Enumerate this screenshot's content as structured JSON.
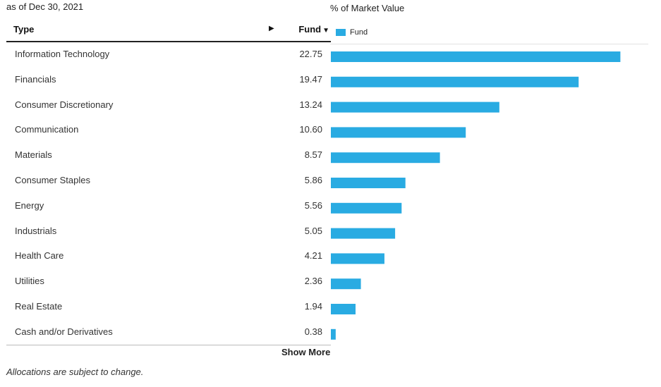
{
  "as_of": "as of Dec 30, 2021",
  "table": {
    "col_type": "Type",
    "col_expand_icon": "triangle-right-icon",
    "col_fund": "Fund",
    "col_sort_icon": "sort-down-icon",
    "rows": [
      {
        "label": "Information Technology",
        "value": "22.75"
      },
      {
        "label": "Financials",
        "value": "19.47"
      },
      {
        "label": "Consumer Discretionary",
        "value": "13.24"
      },
      {
        "label": "Communication",
        "value": "10.60"
      },
      {
        "label": "Materials",
        "value": "8.57"
      },
      {
        "label": "Consumer Staples",
        "value": "5.86"
      },
      {
        "label": "Energy",
        "value": "5.56"
      },
      {
        "label": "Industrials",
        "value": "5.05"
      },
      {
        "label": "Health Care",
        "value": "4.21"
      },
      {
        "label": "Utilities",
        "value": "2.36"
      },
      {
        "label": "Real Estate",
        "value": "1.94"
      },
      {
        "label": "Cash and/or Derivatives",
        "value": "0.38"
      }
    ]
  },
  "show_more": "Show More",
  "footnote": "Allocations are subject to change.",
  "chart_data": {
    "type": "bar",
    "orientation": "horizontal",
    "title": "% of Market Value",
    "categories": [
      "Information Technology",
      "Financials",
      "Consumer Discretionary",
      "Communication",
      "Materials",
      "Consumer Staples",
      "Energy",
      "Industrials",
      "Health Care",
      "Utilities",
      "Real Estate",
      "Cash and/or Derivatives"
    ],
    "series": [
      {
        "name": "Fund",
        "values": [
          22.75,
          19.47,
          13.24,
          10.6,
          8.57,
          5.86,
          5.56,
          5.05,
          4.21,
          2.36,
          1.94,
          0.38
        ],
        "color": "#29abe2"
      }
    ],
    "xlim": [
      0,
      25
    ],
    "grid": false,
    "legend": "top-left",
    "bar_color": "#29abe2"
  }
}
